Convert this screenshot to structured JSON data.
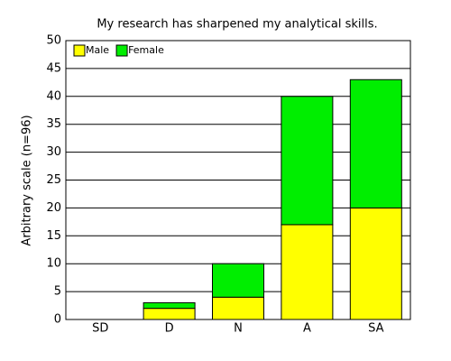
{
  "chart_data": {
    "type": "stacked_bar",
    "title": "My research has sharpened my analytical skills.",
    "y_label": "Arbitrary scale (n=96)",
    "categories": [
      "SD",
      "D",
      "N",
      "A",
      "SA"
    ],
    "series": [
      {
        "name": "Male",
        "color": "#ffff00",
        "values": [
          0,
          2,
          4,
          17,
          20
        ]
      },
      {
        "name": "Female",
        "color": "#00ee00",
        "values": [
          0,
          1,
          6,
          23,
          23
        ]
      }
    ],
    "ylim": [
      0,
      50
    ],
    "yticks": [
      0,
      5,
      10,
      15,
      20,
      25,
      30,
      35,
      40,
      45,
      50
    ],
    "grid": true,
    "legend": "top-left"
  }
}
